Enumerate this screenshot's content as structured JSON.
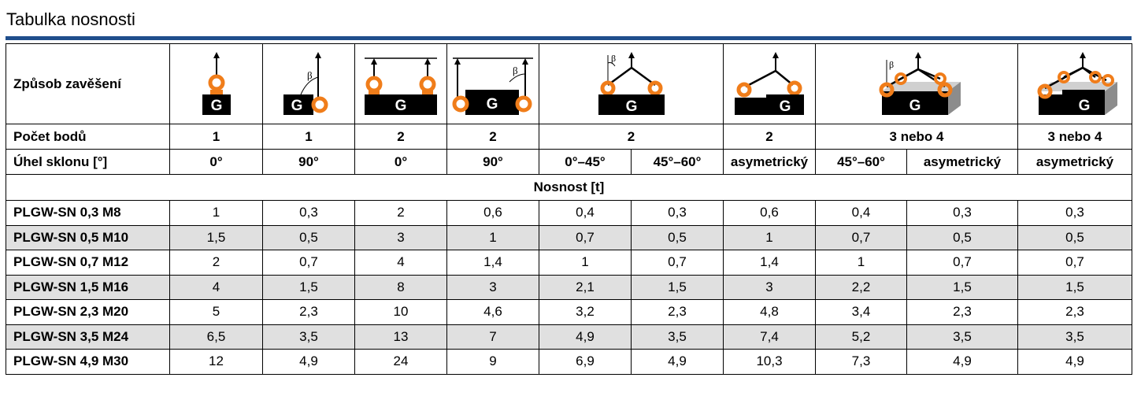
{
  "title": "Tabulka nosnosti",
  "header": {
    "mode_label": "Způsob zavěšení",
    "points_label": "Počet bodů",
    "angle_label": "Úhel sklonu [°]",
    "points": [
      "1",
      "1",
      "2",
      "2",
      "2",
      "2",
      "3 nebo 4",
      "3 nebo 4"
    ],
    "angles": [
      "0°",
      "90°",
      "0°",
      "90°",
      "0°–45°",
      "45°–60°",
      "asymetrický",
      "45°–60°",
      "asymetrický",
      "asymetrický"
    ],
    "pictograms": [
      {
        "icon": "single-vertical-lift-icon",
        "letter": "G"
      },
      {
        "icon": "single-side-lift-beta-icon",
        "letter": "G",
        "angle": "β"
      },
      {
        "icon": "two-point-vertical-lift-icon",
        "letter": "G"
      },
      {
        "icon": "two-point-side-lift-beta-icon",
        "letter": "G",
        "angle": "β"
      },
      {
        "icon": "two-leg-sling-beta-icon",
        "letter": "G",
        "angle": "β"
      },
      {
        "icon": "two-leg-asymmetric-sling-icon",
        "letter": "G"
      },
      {
        "icon": "four-leg-sling-beta-icon",
        "letter": "G",
        "angle": "β"
      },
      {
        "icon": "multi-leg-asymmetric-sling-icon",
        "letter": "G"
      }
    ]
  },
  "section_label": "Nosnost [t]",
  "colors": {
    "accent": "#1f4e8c",
    "ring": "#f07d1a",
    "row_alt": "#e0e0e0"
  },
  "rows": [
    {
      "model": "PLGW-SN 0,3 M8",
      "values": [
        "1",
        "0,3",
        "2",
        "0,6",
        "0,4",
        "0,3",
        "0,6",
        "0,4",
        "0,3",
        "0,3"
      ]
    },
    {
      "model": "PLGW-SN 0,5 M10",
      "values": [
        "1,5",
        "0,5",
        "3",
        "1",
        "0,7",
        "0,5",
        "1",
        "0,7",
        "0,5",
        "0,5"
      ]
    },
    {
      "model": "PLGW-SN 0,7 M12",
      "values": [
        "2",
        "0,7",
        "4",
        "1,4",
        "1",
        "0,7",
        "1,4",
        "1",
        "0,7",
        "0,7"
      ]
    },
    {
      "model": "PLGW-SN 1,5 M16",
      "values": [
        "4",
        "1,5",
        "8",
        "3",
        "2,1",
        "1,5",
        "3",
        "2,2",
        "1,5",
        "1,5"
      ]
    },
    {
      "model": "PLGW-SN 2,3 M20",
      "values": [
        "5",
        "2,3",
        "10",
        "4,6",
        "3,2",
        "2,3",
        "4,8",
        "3,4",
        "2,3",
        "2,3"
      ]
    },
    {
      "model": "PLGW-SN 3,5 M24",
      "values": [
        "6,5",
        "3,5",
        "13",
        "7",
        "4,9",
        "3,5",
        "7,4",
        "5,2",
        "3,5",
        "3,5"
      ]
    },
    {
      "model": "PLGW-SN 4,9 M30",
      "values": [
        "12",
        "4,9",
        "24",
        "9",
        "6,9",
        "4,9",
        "10,3",
        "7,3",
        "4,9",
        "4,9"
      ]
    }
  ]
}
